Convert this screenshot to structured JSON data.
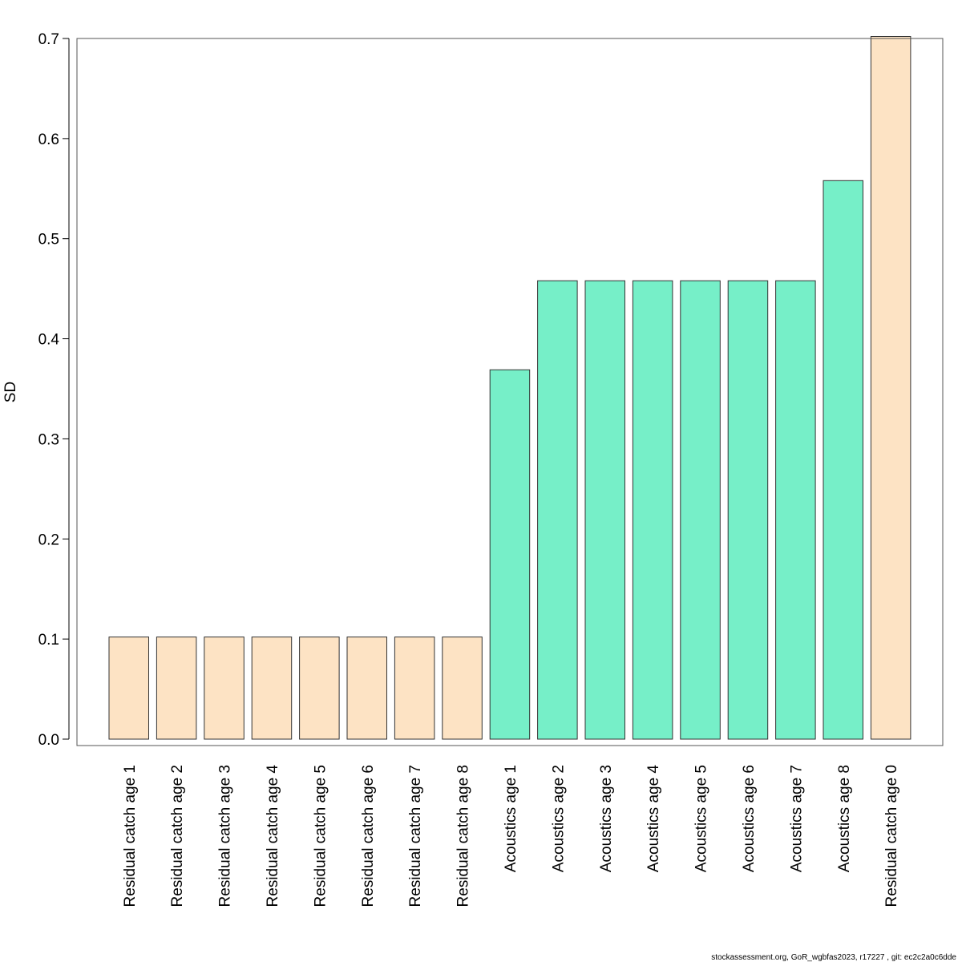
{
  "footer_text": "stockassessment.org, GoR_wgbfas2023, r17227 , git: ec2c2a0c6dde",
  "colors": {
    "residual": "#fde3c4",
    "acoustics": "#76efc8",
    "outline": "#333333",
    "frame": "#555555"
  },
  "chart_data": {
    "type": "bar",
    "title": "",
    "xlabel": "",
    "ylabel": "SD",
    "ylim": [
      0,
      0.7
    ],
    "yticks": [
      "0.0",
      "0.1",
      "0.2",
      "0.3",
      "0.4",
      "0.5",
      "0.6",
      "0.7"
    ],
    "grid": false,
    "categories": [
      "Residual catch age 1",
      "Residual catch age 2",
      "Residual catch age 3",
      "Residual catch age 4",
      "Residual catch age 5",
      "Residual catch age 6",
      "Residual catch age 7",
      "Residual catch age 8",
      "Acoustics age 1",
      "Acoustics age 2",
      "Acoustics age 3",
      "Acoustics age 4",
      "Acoustics age 5",
      "Acoustics age 6",
      "Acoustics age 7",
      "Acoustics age 8",
      "Residual catch age 0"
    ],
    "values": [
      0.102,
      0.102,
      0.102,
      0.102,
      0.102,
      0.102,
      0.102,
      0.102,
      0.369,
      0.458,
      0.458,
      0.458,
      0.458,
      0.458,
      0.458,
      0.558,
      0.702
    ],
    "bar_groups": [
      "residual",
      "residual",
      "residual",
      "residual",
      "residual",
      "residual",
      "residual",
      "residual",
      "acoustics",
      "acoustics",
      "acoustics",
      "acoustics",
      "acoustics",
      "acoustics",
      "acoustics",
      "acoustics",
      "residual"
    ]
  }
}
